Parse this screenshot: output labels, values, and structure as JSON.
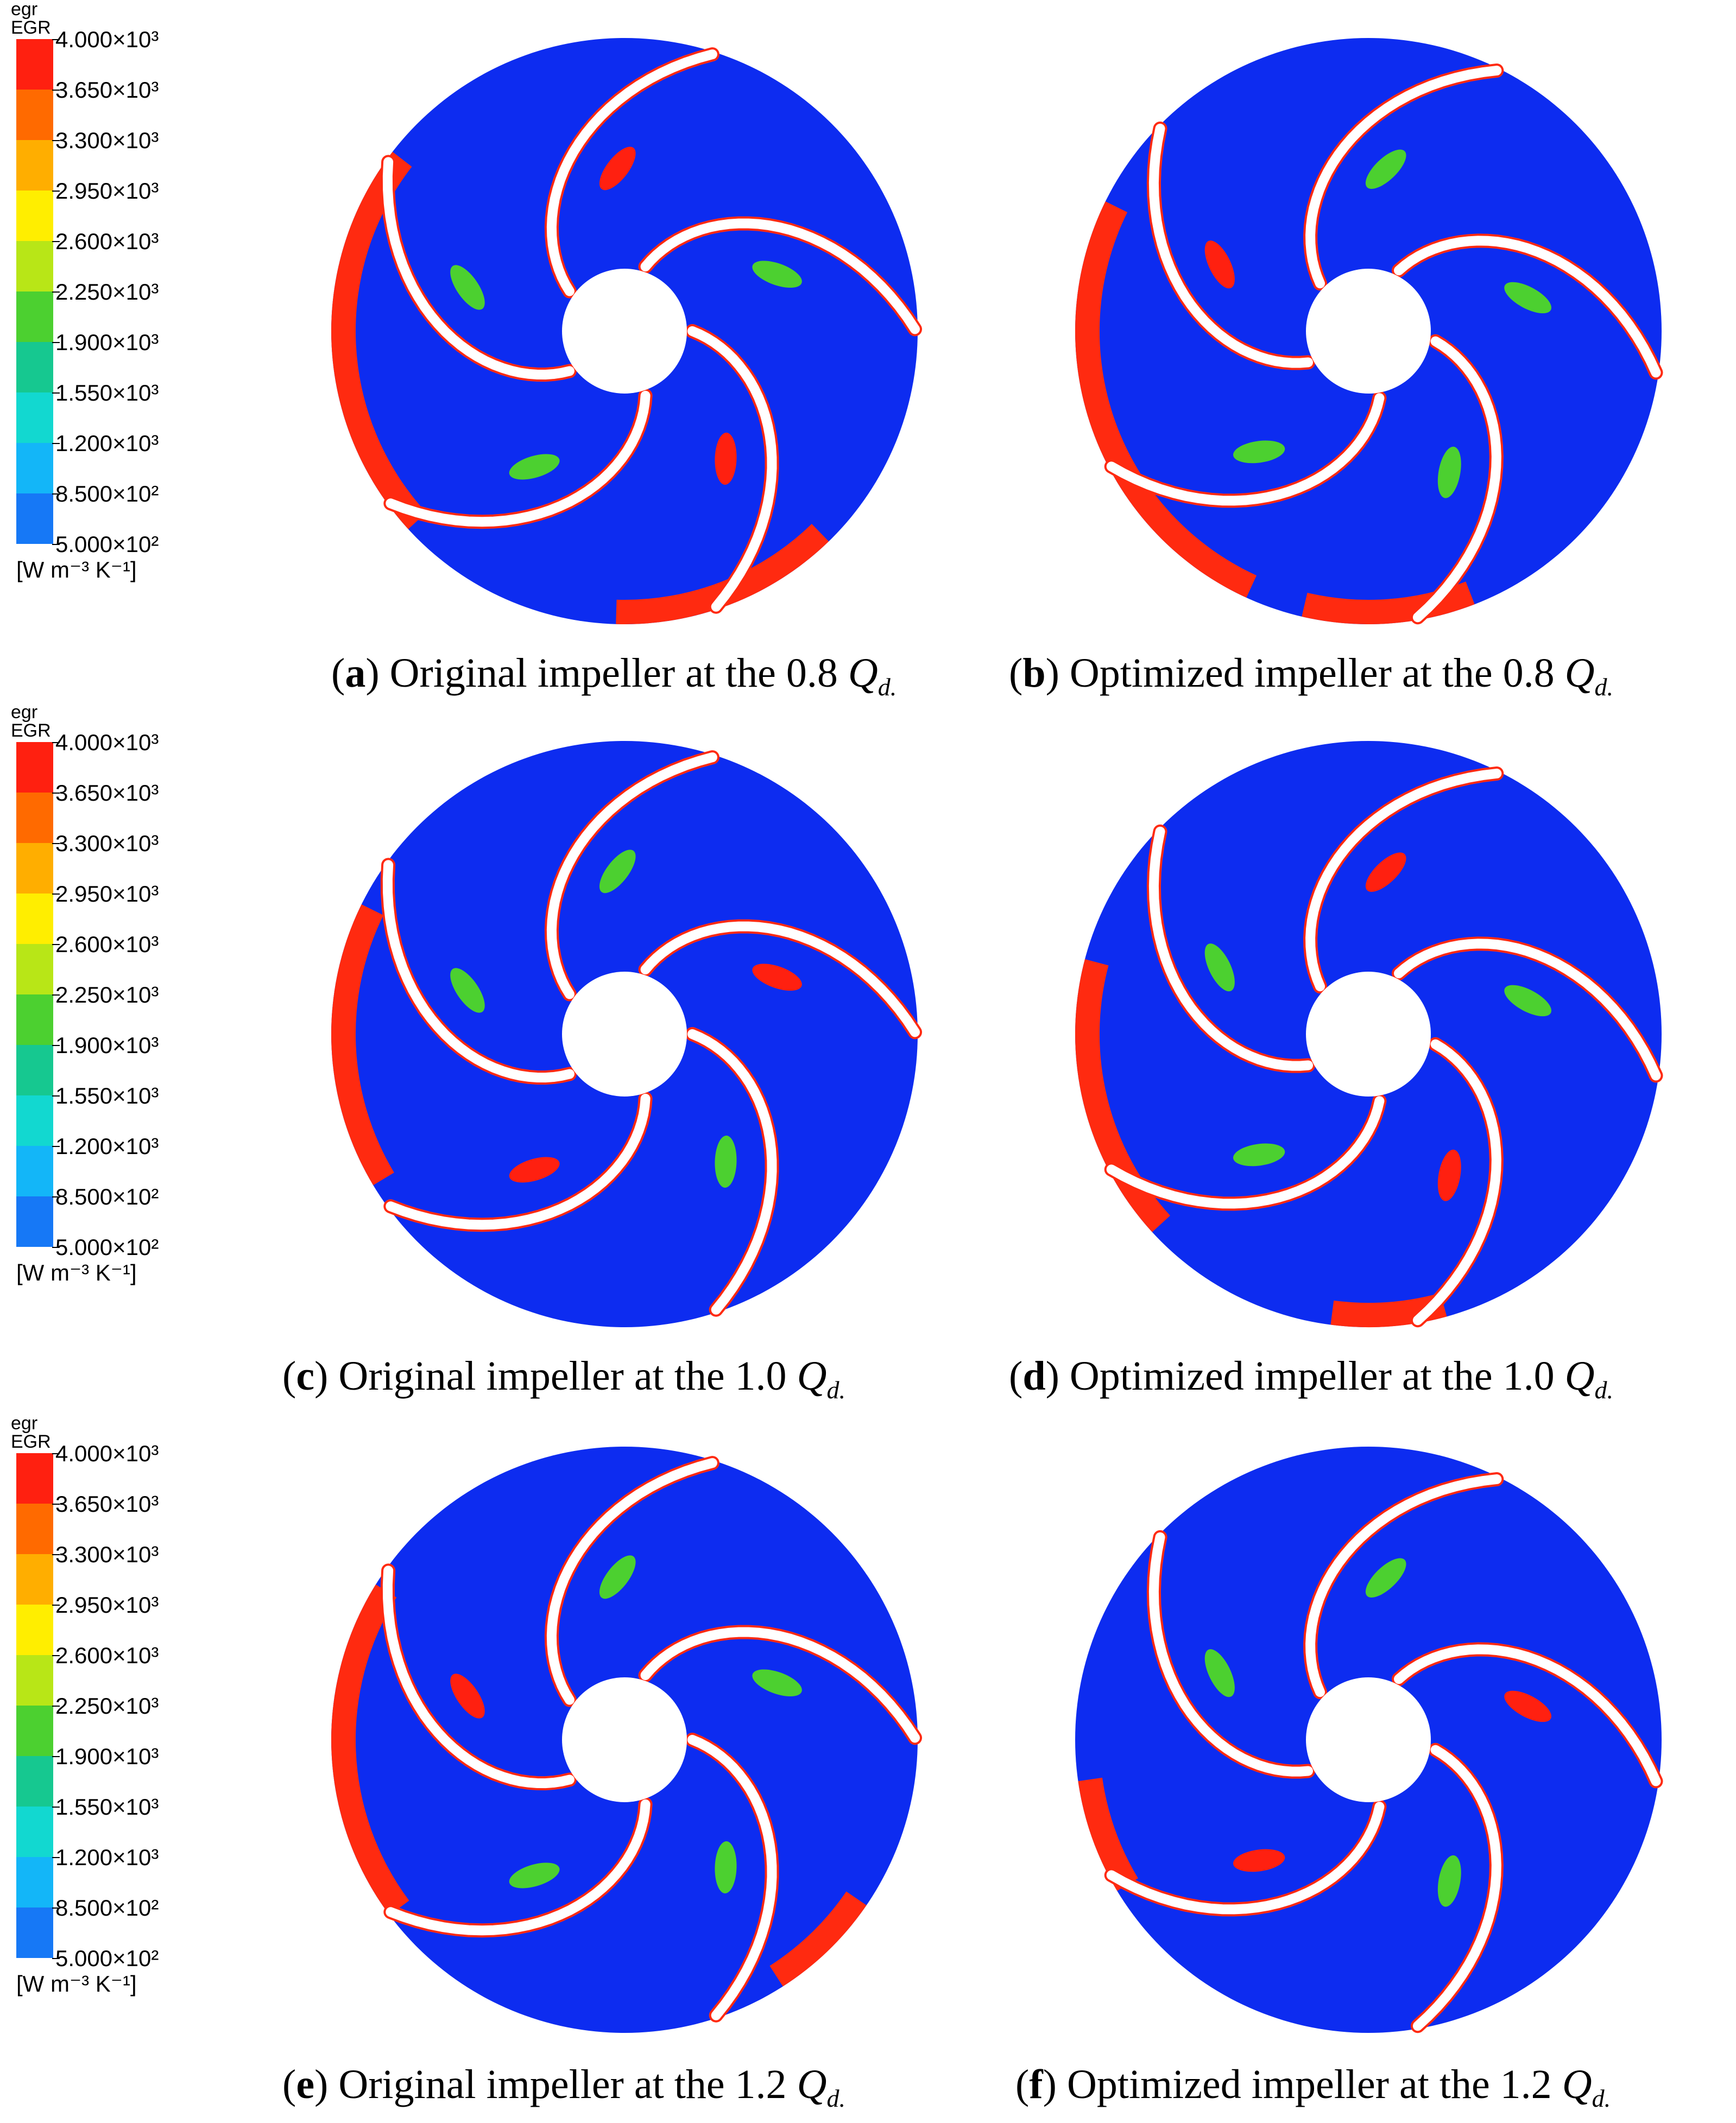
{
  "legend": {
    "var_short": "egr",
    "var_long": "EGR",
    "ticks": [
      "4.000×10³",
      "3.650×10³",
      "3.300×10³",
      "2.950×10³",
      "2.600×10³",
      "2.250×10³",
      "1.900×10³",
      "1.550×10³",
      "1.200×10³",
      "8.500×10²",
      "5.000×10²"
    ],
    "unit": "[W m⁻³ K⁻¹]",
    "colors": [
      "#ff2010",
      "#ff6a00",
      "#ffae00",
      "#ffee00",
      "#b8e617",
      "#4cd030",
      "#16c890",
      "#12d8d0",
      "#13b6f8",
      "#1678f6",
      "#0033f3"
    ]
  },
  "panels": [
    {
      "letter": "a",
      "text": "Original impeller at the 0.8",
      "q": "Q",
      "qsub": "d."
    },
    {
      "letter": "b",
      "text": "Optimized impeller at the 0.8",
      "q": "Q",
      "qsub": "d."
    },
    {
      "letter": "c",
      "text": "Original impeller at the 1.0",
      "q": "Q",
      "qsub": "d."
    },
    {
      "letter": "d",
      "text": "Optimized impeller at the 1.0",
      "q": "Q",
      "qsub": "d."
    },
    {
      "letter": "e",
      "text": "Original impeller at the 1.2",
      "q": "Q",
      "qsub": "d."
    },
    {
      "letter": "f",
      "text": "Optimized impeller at the 1.2",
      "q": "Q",
      "qsub": "d."
    }
  ],
  "colors": {
    "background": "#0d2cf0",
    "high": "#ff2a10",
    "blade": "#ffffff"
  }
}
